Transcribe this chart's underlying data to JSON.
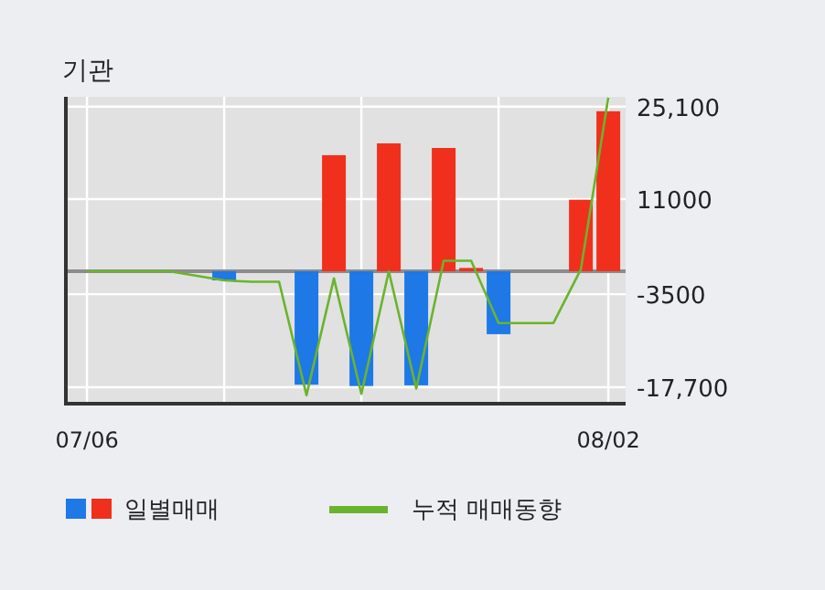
{
  "chart_data": {
    "type": "bar",
    "title": "기관",
    "categories": [
      "07/06",
      null,
      null,
      null,
      null,
      null,
      null,
      null,
      null,
      null,
      null,
      null,
      null,
      null,
      null,
      null,
      null,
      null,
      null,
      "08/02"
    ],
    "series": [
      {
        "name": "일별매매",
        "values": [
          0,
          0,
          0,
          0,
          0,
          -1400,
          0,
          0,
          -17300,
          17700,
          -17500,
          19500,
          -17400,
          18800,
          500,
          -9600,
          0,
          0,
          10900,
          24400
        ],
        "colors": [
          "#1e78e6",
          "#1e78e6",
          "#1e78e6",
          "#1e78e6",
          "#1e78e6",
          "#1e78e6",
          "#1e78e6",
          "#1e78e6",
          "#1e78e6",
          "#f0301c",
          "#1e78e6",
          "#f0301c",
          "#1e78e6",
          "#f0301c",
          "#f0301c",
          "#1e78e6",
          "#1e78e6",
          "#1e78e6",
          "#f0301c",
          "#f0301c"
        ]
      },
      {
        "type": "line",
        "name": "누적 매매동향",
        "color": "#6ab42c",
        "values": [
          0,
          0,
          0,
          0,
          -700,
          -1400,
          -1600,
          -1600,
          -18900,
          -1100,
          -18700,
          0,
          -17900,
          1600,
          1600,
          -7900,
          -7900,
          -7900,
          300,
          26500
        ]
      }
    ],
    "ylim": [
      -20200,
      26600
    ],
    "yticks": [
      {
        "value": 25100,
        "label": "25,100"
      },
      11000,
      -3500,
      {
        "value": -17700,
        "label": "-17,700"
      }
    ],
    "grid": true,
    "legend": "bottom",
    "ref_lines": [
      {
        "axis": "y",
        "value": 0,
        "color": "#8c8c8c"
      }
    ]
  }
}
